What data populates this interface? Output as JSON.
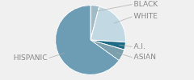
{
  "chart_data": {
    "type": "pie",
    "categories": [
      "BLACK",
      "WHITE",
      "A.I.",
      "ASIAN",
      "HISPANIC"
    ],
    "values": [
      4.0,
      22.0,
      3.5,
      5.5,
      65.0
    ],
    "colors": [
      "#a0bcc8",
      "#c2d8e2",
      "#1e6b85",
      "#7a9fad",
      "#6d9db5"
    ]
  }
}
